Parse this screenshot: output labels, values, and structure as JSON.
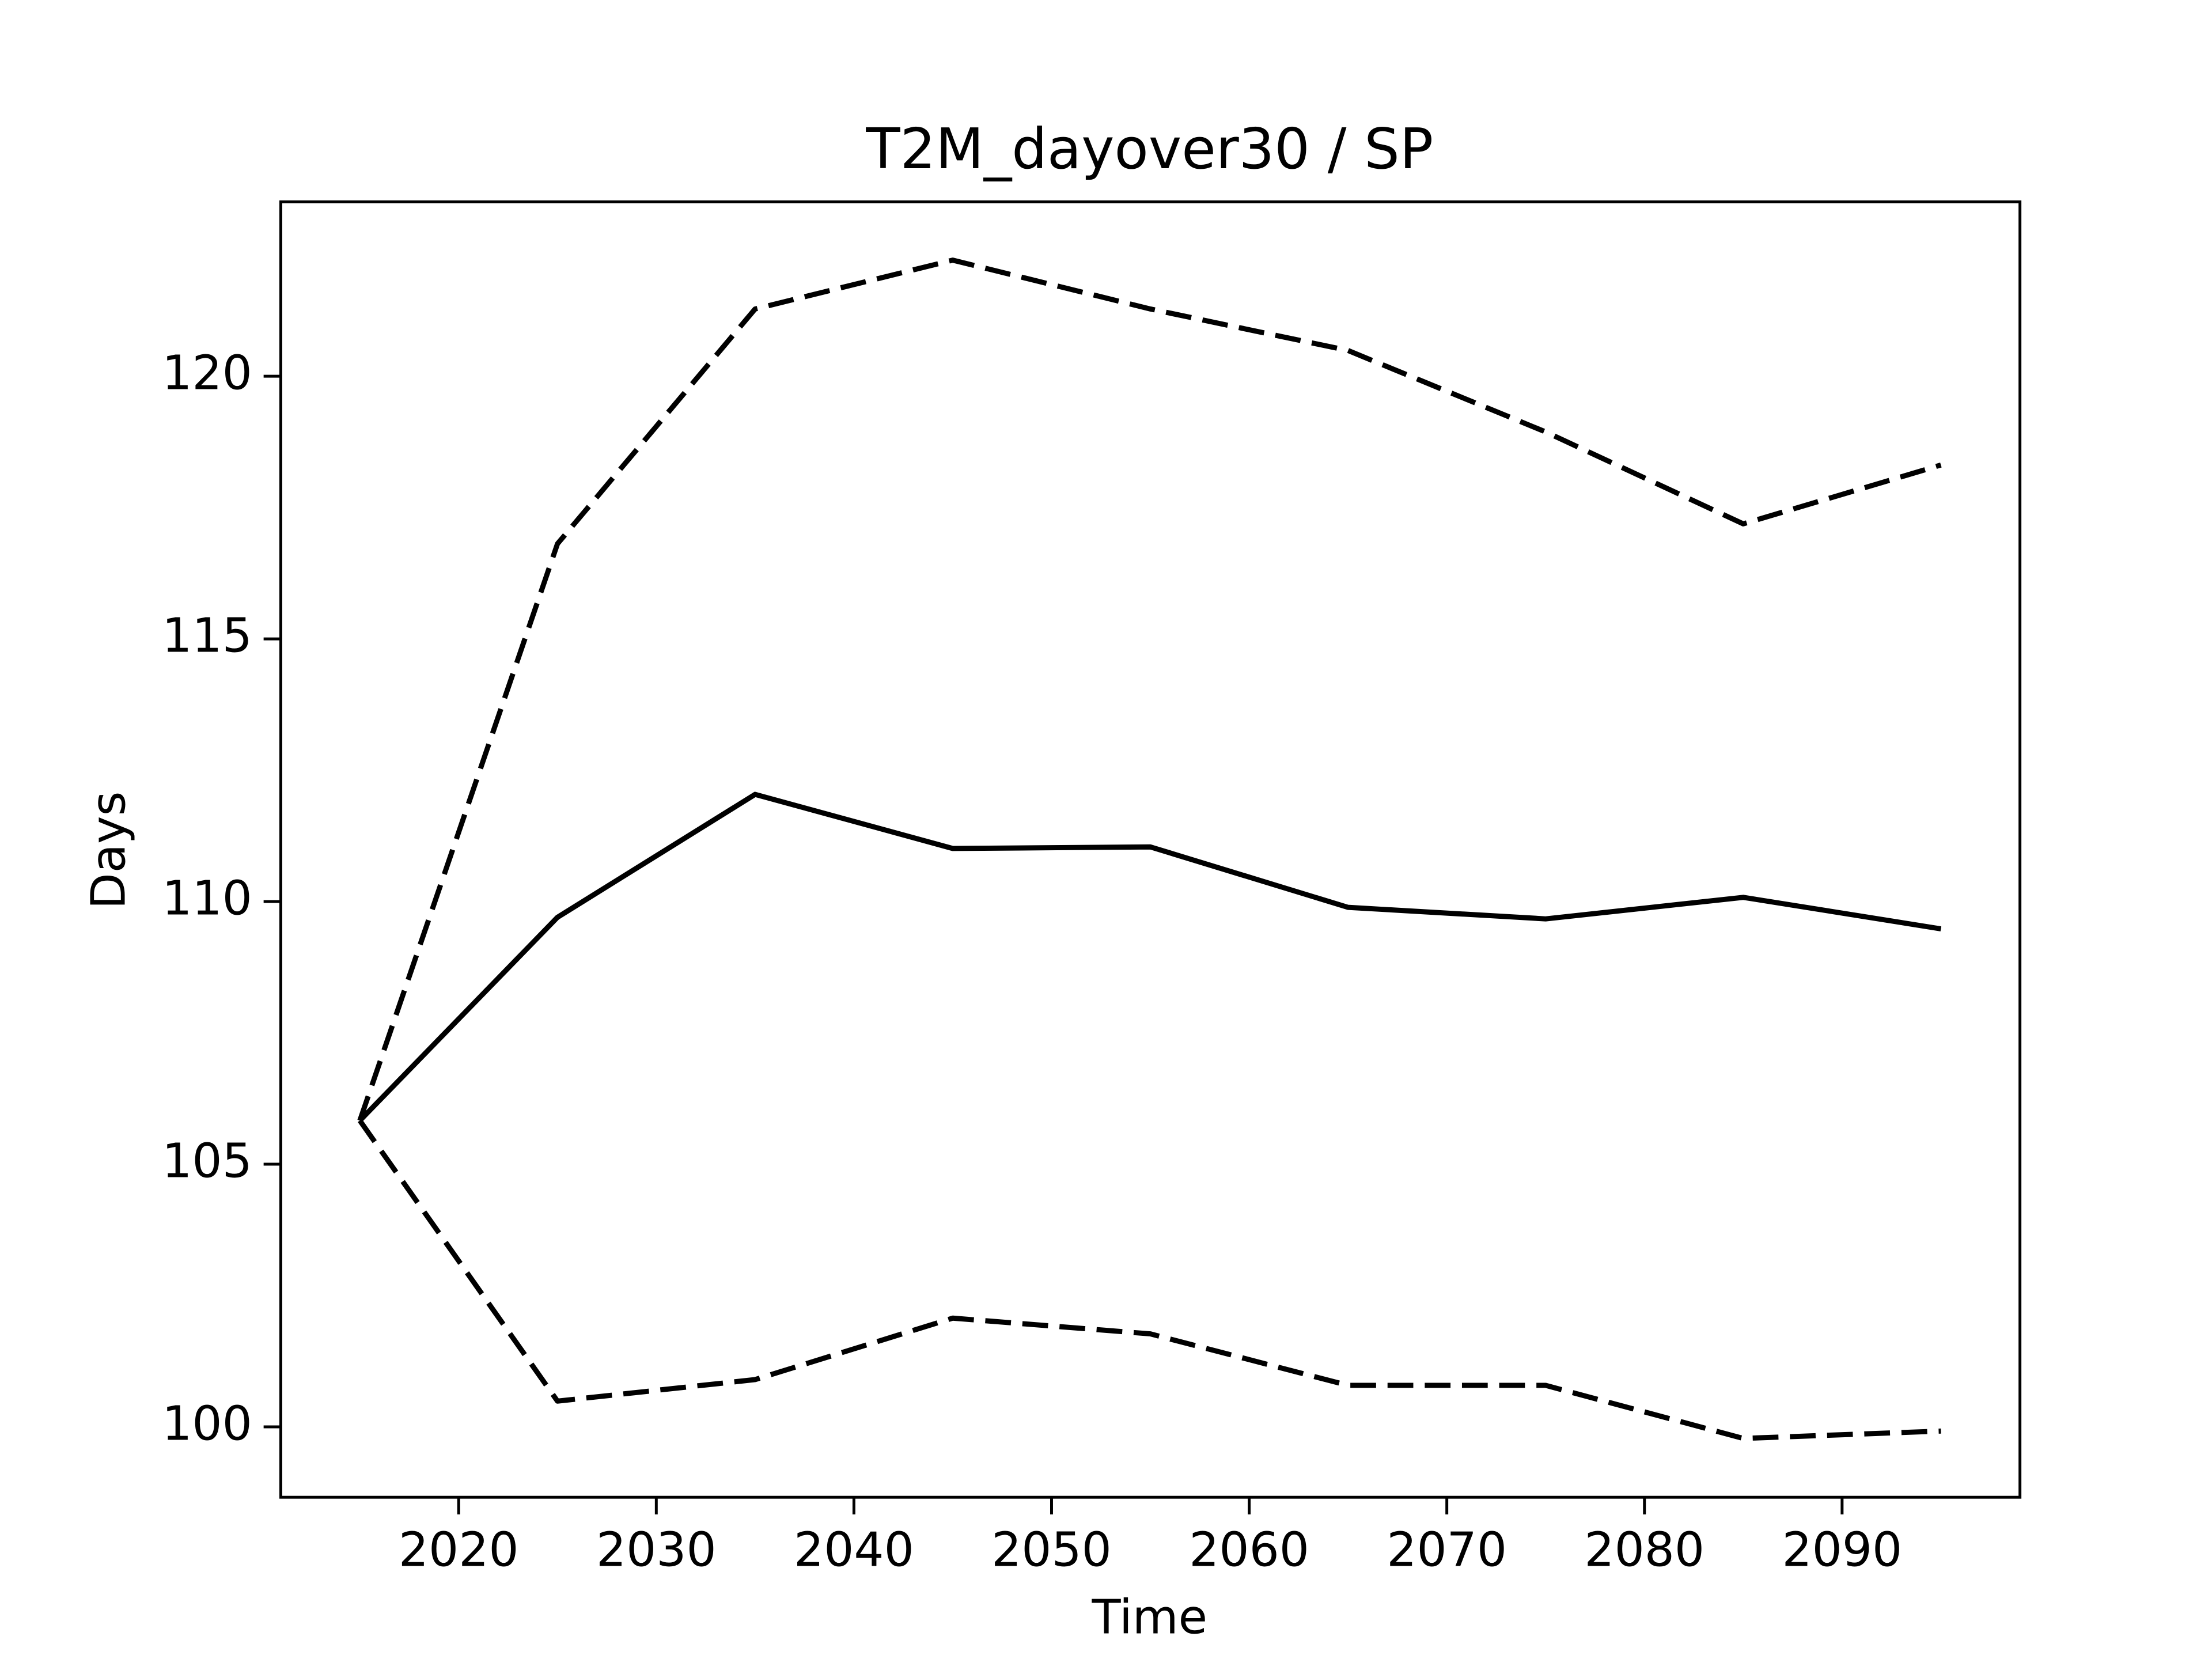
{
  "chart_data": {
    "type": "line",
    "title": "T2M_dayover30 / SP",
    "x_label": "Time",
    "y_label": "Days",
    "x": [
      2015,
      2025,
      2035,
      2045,
      2055,
      2065,
      2075,
      2085,
      2095
    ],
    "series": [
      {
        "color": "#000000",
        "linestyle": "solid",
        "values": [
          105.83,
          109.7,
          112.04,
          111.01,
          111.04,
          109.89,
          109.67,
          110.08,
          109.48
        ]
      },
      {
        "color": "#000000",
        "linestyle": "dashed",
        "values": [
          105.83,
          116.81,
          121.28,
          122.21,
          121.28,
          120.49,
          118.94,
          117.19,
          118.31
        ]
      },
      {
        "color": "#000000",
        "linestyle": "dashed",
        "values": [
          105.83,
          100.49,
          100.9,
          102.07,
          101.77,
          100.79,
          100.79,
          99.78,
          99.92
        ]
      }
    ],
    "xlim": [
      2011,
      2099
    ],
    "xticks": [
      2020,
      2030,
      2040,
      2050,
      2060,
      2070,
      2080,
      2090
    ],
    "ylim": [
      98.66,
      123.32
    ],
    "yticks": [
      100,
      105,
      110,
      115,
      120
    ],
    "grid": false
  }
}
